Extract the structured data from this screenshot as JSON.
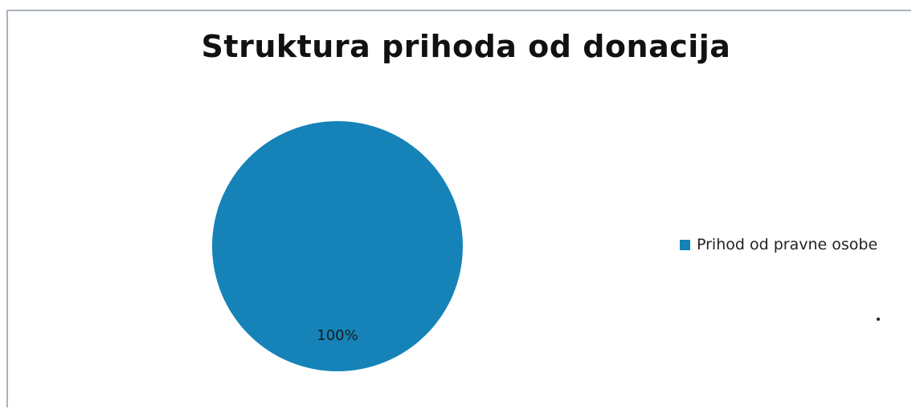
{
  "chart_data": {
    "type": "pie",
    "title": "Struktura prihoda od donacija",
    "categories": [
      "Prihod od pravne osobe"
    ],
    "values": [
      100
    ],
    "data_labels": [
      "100%"
    ],
    "colors": [
      "#1583b8"
    ],
    "legend_position": "right"
  }
}
